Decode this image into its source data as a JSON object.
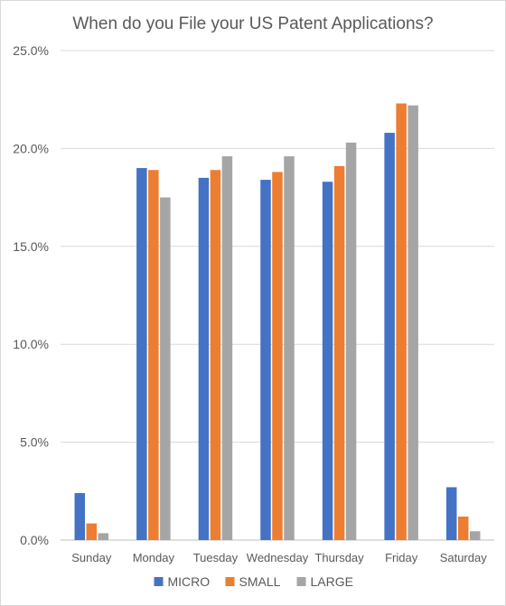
{
  "chart_data": {
    "type": "bar",
    "title": "When do you File your US Patent Applications?",
    "categories": [
      "Sunday",
      "Monday",
      "Tuesday",
      "Wednesday",
      "Thursday",
      "Friday",
      "Saturday"
    ],
    "series": [
      {
        "name": "MICRO",
        "color": "#4472c4",
        "values": [
          2.4,
          19.0,
          18.5,
          18.4,
          18.3,
          20.8,
          2.7
        ]
      },
      {
        "name": "SMALL",
        "color": "#ed7d31",
        "values": [
          0.85,
          18.9,
          18.9,
          18.8,
          19.1,
          22.3,
          1.2
        ]
      },
      {
        "name": "LARGE",
        "color": "#a5a5a5",
        "values": [
          0.35,
          17.5,
          19.6,
          19.6,
          20.3,
          22.2,
          0.45
        ]
      }
    ],
    "yticks": [
      "0.0%",
      "5.0%",
      "10.0%",
      "15.0%",
      "20.0%",
      "25.0%"
    ],
    "ylim": [
      0,
      25
    ],
    "grid": true,
    "legend": "bottom"
  }
}
